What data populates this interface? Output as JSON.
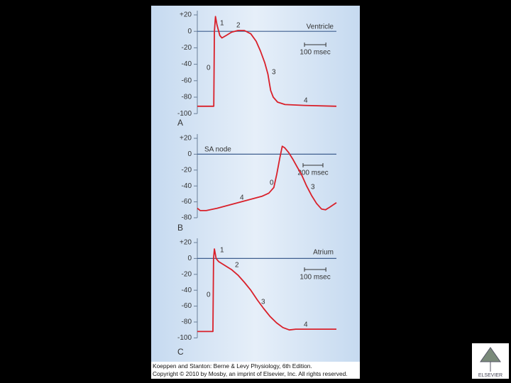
{
  "chart_data": [
    {
      "type": "line",
      "label": "A",
      "title": "Ventricle",
      "x": [
        0,
        77,
        80,
        85,
        92,
        105,
        115,
        135,
        160,
        190,
        220,
        250,
        275,
        295,
        315,
        330,
        337,
        343,
        355,
        375,
        410,
        500,
        650
      ],
      "series": [
        {
          "color": "#d9202a",
          "values": [
            -91,
            -91,
            0,
            18,
            8,
            -5,
            -8,
            -5,
            -1,
            1,
            1,
            -3,
            -12,
            -24,
            -38,
            -52,
            -63,
            -72,
            -80,
            -86,
            -89,
            -90,
            -91
          ]
        }
      ],
      "xlim": [
        0,
        650
      ],
      "ylim": [
        -100,
        20
      ],
      "yticks": [
        {
          "value": 20,
          "label": "+20"
        },
        0,
        -20,
        -40,
        -60,
        -80,
        -100
      ],
      "scale_bar": {
        "value": 100,
        "label": "100 msec"
      },
      "annotations": [
        "1",
        "2",
        "0",
        "3",
        "4"
      ]
    },
    {
      "type": "line",
      "label": "B",
      "title": "SA node",
      "x": [
        0,
        30,
        90,
        200,
        350,
        500,
        650,
        720,
        770,
        800,
        830,
        855,
        880,
        920,
        960,
        1000,
        1050,
        1100,
        1150,
        1200,
        1250,
        1290,
        1330,
        1400
      ],
      "series": [
        {
          "color": "#d9202a",
          "values": [
            -68,
            -71,
            -71,
            -68,
            -63,
            -58,
            -53,
            -49,
            -42,
            -25,
            -5,
            10,
            8,
            2,
            -6,
            -15,
            -26,
            -40,
            -52,
            -62,
            -69,
            -70,
            -67,
            -61
          ]
        }
      ],
      "xlim": [
        0,
        1400
      ],
      "ylim": [
        -80,
        20
      ],
      "yticks": [
        {
          "value": 20,
          "label": "+20"
        },
        0,
        -20,
        -40,
        -60,
        -80
      ],
      "scale_bar": {
        "value": 200,
        "label": "200 msec"
      },
      "annotations": [
        "4",
        "0",
        "3"
      ]
    },
    {
      "type": "line",
      "label": "C",
      "title": "Atrium",
      "x": [
        0,
        73,
        76,
        80,
        88,
        100,
        130,
        160,
        190,
        220,
        250,
        280,
        310,
        340,
        370,
        400,
        430,
        460,
        500,
        650
      ],
      "series": [
        {
          "color": "#d9202a",
          "values": [
            -92,
            -92,
            0,
            12,
            0,
            -4,
            -9,
            -14,
            -21,
            -30,
            -40,
            -52,
            -63,
            -73,
            -81,
            -87,
            -90,
            -89,
            -89,
            -89
          ]
        }
      ],
      "xlim": [
        0,
        650
      ],
      "ylim": [
        -100,
        20
      ],
      "yticks": [
        {
          "value": 20,
          "label": "+20"
        },
        0,
        -20,
        -40,
        -60,
        -80,
        -100
      ],
      "scale_bar": {
        "value": 100,
        "label": "100 msec"
      },
      "annotations": [
        "1",
        "2",
        "0",
        "3",
        "4"
      ]
    }
  ],
  "footer": {
    "line1": "Koeppen and Stanton: Berne & Levy Physiology, 6th Edition.",
    "line2": "Copyright © 2010 by Mosby, an imprint of Elsevier, Inc. All rights reserved."
  },
  "logo": "ELSEVIER"
}
